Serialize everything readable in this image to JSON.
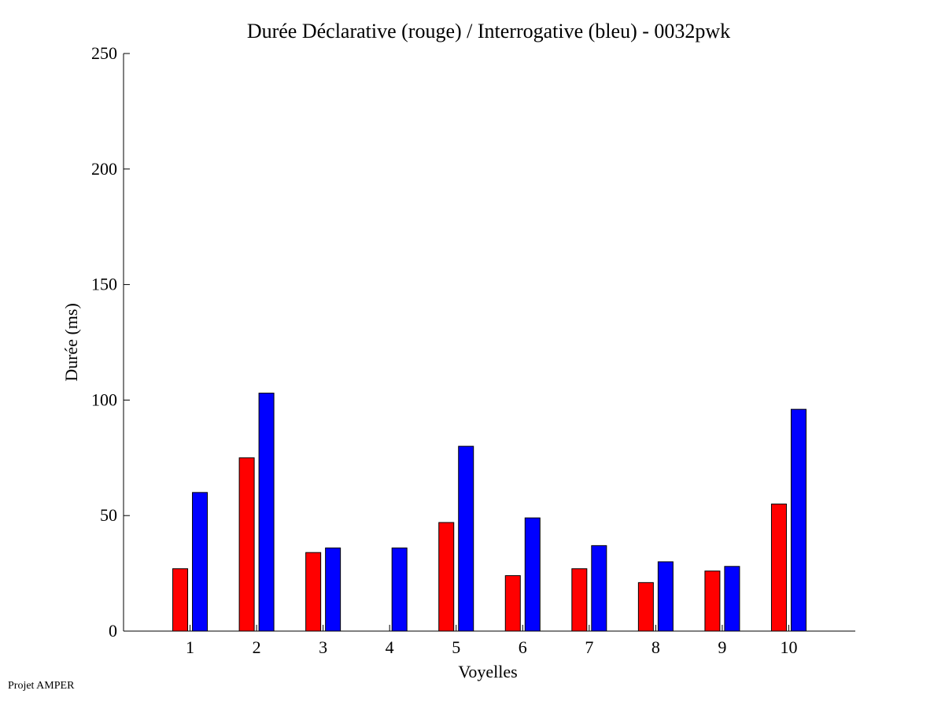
{
  "chart_data": {
    "type": "bar",
    "title": "Durée Déclarative (rouge) / Interrogative (bleu) - 0032pwk",
    "xlabel": "Voyelles",
    "ylabel": "Durée (ms)",
    "categories": [
      "1",
      "2",
      "3",
      "4",
      "5",
      "6",
      "7",
      "8",
      "9",
      "10"
    ],
    "ylim": [
      0,
      250
    ],
    "xlim": [
      0,
      11
    ],
    "yticks": [
      0,
      50,
      100,
      150,
      200,
      250
    ],
    "grid": false,
    "series": [
      {
        "name": "Déclarative",
        "color": "#ff0000",
        "values": [
          27,
          75,
          34,
          0,
          47,
          24,
          27,
          21,
          26,
          55
        ]
      },
      {
        "name": "Interrogative",
        "color": "#0000ff",
        "values": [
          60,
          103,
          36,
          36,
          80,
          49,
          37,
          30,
          28,
          96
        ]
      }
    ]
  },
  "footer": {
    "credit": "Projet AMPER"
  }
}
